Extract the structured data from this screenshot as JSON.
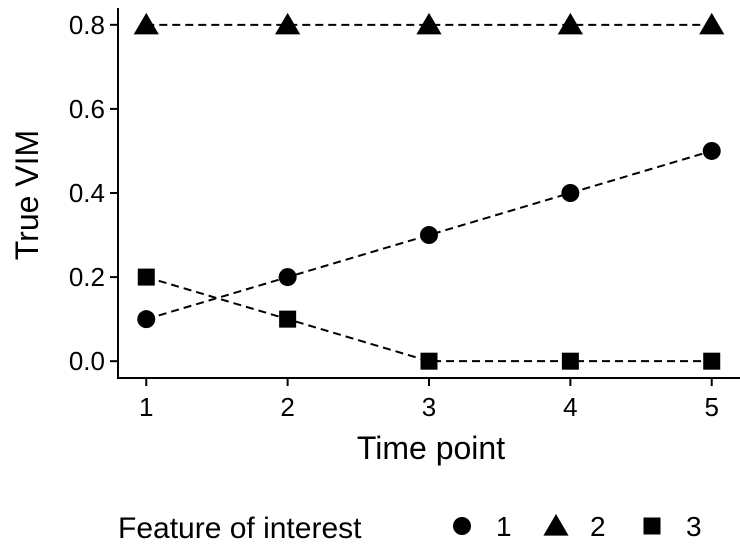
{
  "chart_data": {
    "type": "scatter",
    "title": "",
    "xlabel": "Time point",
    "ylabel": "True VIM",
    "x": [
      1,
      2,
      3,
      4,
      5
    ],
    "xticks": [
      "1",
      "2",
      "3",
      "4",
      "5"
    ],
    "yticks": [
      "0.0",
      "0.2",
      "0.4",
      "0.6",
      "0.8"
    ],
    "xlim": [
      0.8,
      5.2
    ],
    "ylim": [
      -0.04,
      0.84
    ],
    "grid": false,
    "line_style": "dashed",
    "legend": {
      "title": "Feature of interest",
      "placement": "bottom",
      "entries": [
        "1",
        "2",
        "3"
      ]
    },
    "series": [
      {
        "name": "1",
        "marker": "circle",
        "values": [
          0.1,
          0.2,
          0.3,
          0.4,
          0.5
        ]
      },
      {
        "name": "2",
        "marker": "triangle",
        "values": [
          0.8,
          0.8,
          0.8,
          0.8,
          0.8
        ]
      },
      {
        "name": "3",
        "marker": "square",
        "values": [
          0.2,
          0.1,
          0.0,
          0.0,
          0.0
        ]
      }
    ],
    "colors": {
      "marks": "#000000",
      "background": "#ffffff"
    }
  }
}
